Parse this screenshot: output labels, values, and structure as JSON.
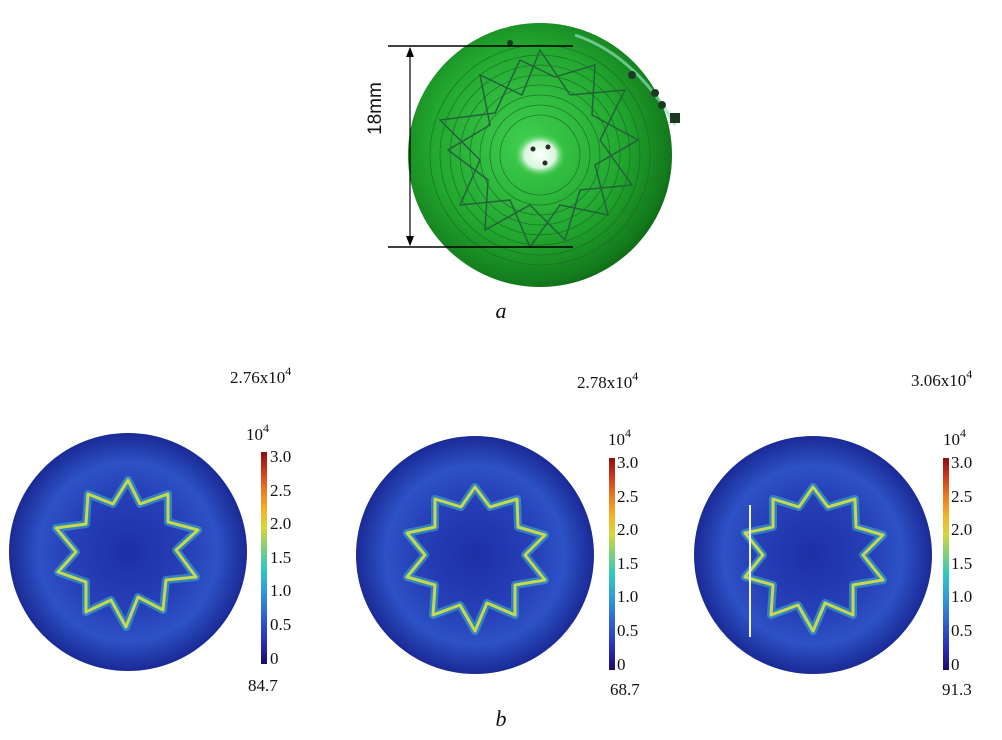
{
  "panel_a": {
    "dimension_label": "18mm",
    "caption": "a"
  },
  "panel_b": {
    "caption": "b",
    "plots": [
      {
        "max_label": "2.76x10",
        "max_exp": "4",
        "scale_label": "10",
        "scale_exp": "4",
        "ticks": [
          "3.0",
          "2.5",
          "2.0",
          "1.5",
          "1.0",
          "0.5",
          "0"
        ],
        "min_label": "84.7"
      },
      {
        "max_label": "2.78x10",
        "max_exp": "4",
        "scale_label": "10",
        "scale_exp": "4",
        "ticks": [
          "3.0",
          "2.5",
          "2.0",
          "1.5",
          "1.0",
          "0.5",
          "0"
        ],
        "min_label": "68.7"
      },
      {
        "max_label": "3.06x10",
        "max_exp": "4",
        "scale_label": "10",
        "scale_exp": "4",
        "ticks": [
          "3.0",
          "2.5",
          "2.0",
          "1.5",
          "1.0",
          "0.5",
          "0"
        ],
        "min_label": "91.3"
      }
    ]
  }
}
